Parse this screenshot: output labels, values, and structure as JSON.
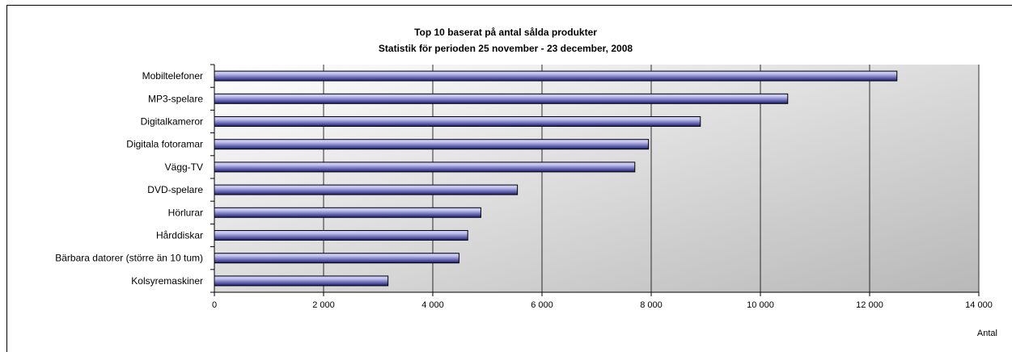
{
  "chart_data": {
    "type": "bar",
    "orientation": "horizontal",
    "title": "Top 10 baserat på antal sålda produkter",
    "subtitle": "Statistik för perioden 25 november - 23 december, 2008",
    "xlabel": "Antal",
    "ylabel": "",
    "xlim": [
      0,
      14000
    ],
    "xticks": [
      0,
      2000,
      4000,
      6000,
      8000,
      10000,
      12000,
      14000
    ],
    "xtick_labels": [
      "0",
      "2 000",
      "4 000",
      "6 000",
      "8 000",
      "10 000",
      "12 000",
      "14 000"
    ],
    "grid": true,
    "legend": "none",
    "categories": [
      "Mobiltelefoner",
      "MP3-spelare",
      "Digitalkameror",
      "Digitala fotoramar",
      "Vägg-TV",
      "DVD-spelare",
      "Hörlurar",
      "Hårddiskar",
      "Bärbara datorer (större än 10 tum)",
      "Kolsyremaskiner"
    ],
    "values": [
      12500,
      10500,
      8900,
      7950,
      7700,
      5550,
      4880,
      4640,
      4480,
      3180
    ],
    "colors": {
      "bar_light": "#c8c8f4",
      "bar_dark": "#1c1c78",
      "plot_light": "#ffffff",
      "plot_dark": "#b8b8b8",
      "grid": "#000000"
    }
  }
}
